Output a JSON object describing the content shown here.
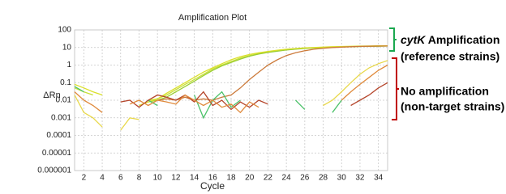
{
  "chart_data": {
    "type": "line",
    "title": "Amplification Plot",
    "x_label": "Cycle",
    "y_label": "ΔRn",
    "y_scale": "log",
    "grid": true,
    "xlim": [
      1,
      35
    ],
    "xticks": [
      2,
      4,
      6,
      8,
      10,
      12,
      14,
      16,
      18,
      20,
      22,
      24,
      26,
      28,
      30,
      32,
      34
    ],
    "ylim": [
      1e-06,
      100
    ],
    "yticks": [
      100,
      10,
      1,
      0.1,
      0.01,
      0.001,
      0.0001,
      1e-05,
      1e-06
    ],
    "x": [
      1,
      2,
      3,
      4,
      5,
      6,
      7,
      8,
      9,
      10,
      11,
      12,
      13,
      14,
      15,
      16,
      17,
      18,
      19,
      20,
      21,
      22,
      23,
      24,
      25,
      26,
      27,
      28,
      29,
      30,
      31,
      32,
      33,
      34,
      35
    ],
    "series": [
      {
        "color": "#c8e03a",
        "values": [
          0.05,
          0.03,
          0.02,
          null,
          null,
          null,
          null,
          null,
          0.01,
          0.012,
          0.02,
          0.04,
          0.08,
          0.15,
          0.3,
          0.6,
          1,
          1.6,
          2.5,
          3.5,
          4.5,
          5.5,
          6.5,
          7.5,
          8.3,
          9,
          9.6,
          10,
          10.5,
          11,
          11.3,
          11.6,
          11.8,
          12,
          12.2
        ]
      },
      {
        "color": "#9acd32",
        "values": [
          null,
          null,
          null,
          null,
          null,
          null,
          null,
          null,
          0.008,
          0.01,
          0.015,
          0.03,
          0.06,
          0.12,
          0.25,
          0.5,
          0.9,
          1.4,
          2.2,
          3.2,
          4.2,
          5.2,
          6.2,
          7.2,
          8,
          8.8,
          9.4,
          10,
          10.4,
          10.8,
          11.1,
          11.4,
          11.6,
          11.8,
          12
        ]
      },
      {
        "color": "#dbe02a",
        "values": [
          0.08,
          0.05,
          0.03,
          0.02,
          null,
          null,
          null,
          0.005,
          0.008,
          0.012,
          0.025,
          0.05,
          0.1,
          0.2,
          0.4,
          0.7,
          1.2,
          2,
          3,
          4,
          5,
          6,
          7,
          8,
          8.8,
          9.5,
          10,
          10.5,
          11,
          11.4,
          11.7,
          12,
          12.2,
          12.4,
          12.5
        ]
      },
      {
        "color": "#cc7a3a",
        "values": [
          null,
          null,
          null,
          null,
          null,
          null,
          null,
          null,
          null,
          0.01,
          0.012,
          0.01,
          0.015,
          0.01,
          0.012,
          0.01,
          0.015,
          0.02,
          0.05,
          0.15,
          0.4,
          1,
          2,
          3.5,
          5,
          6.5,
          8,
          9,
          10,
          10.5,
          11,
          11.5,
          11.8,
          12,
          12.2
        ]
      },
      {
        "color": "#4cc26a",
        "values": [
          0.06,
          0.03,
          null,
          0.02,
          null,
          null,
          null,
          null,
          0.01,
          0.005,
          null,
          null,
          null,
          0.02,
          0.001,
          0.01,
          0.03,
          0.004,
          0.01,
          null,
          null,
          null,
          null,
          null,
          0.01,
          0.003,
          null,
          null,
          0.002,
          0.01,
          null,
          null,
          null,
          null,
          null
        ]
      },
      {
        "color": "#b5462c",
        "values": [
          null,
          null,
          null,
          null,
          null,
          0.008,
          0.01,
          0.004,
          0.01,
          0.02,
          0.015,
          0.01,
          0.02,
          0.008,
          0.03,
          0.005,
          0.01,
          0.003,
          0.008,
          0.004,
          0.01,
          0.006,
          null,
          null,
          null,
          null,
          null,
          null,
          null,
          null,
          0.005,
          0.01,
          0.02,
          0.05,
          0.1
        ]
      },
      {
        "color": "#e08a3c",
        "values": [
          0.03,
          0.01,
          0.005,
          0.002,
          null,
          null,
          0.006,
          0.01,
          0.005,
          0.01,
          0.008,
          0.006,
          0.02,
          0.01,
          0.005,
          0.01,
          0.004,
          0.006,
          0.002,
          0.008,
          0.004,
          null,
          null,
          null,
          null,
          null,
          null,
          null,
          null,
          0.01,
          0.03,
          0.08,
          0.2,
          0.5,
          1
        ]
      },
      {
        "color": "#e8d84a",
        "values": [
          0.02,
          0.002,
          0.001,
          0.0003,
          null,
          0.0002,
          0.001,
          0.0008,
          null,
          null,
          null,
          null,
          null,
          null,
          null,
          null,
          null,
          null,
          null,
          null,
          null,
          null,
          null,
          null,
          null,
          null,
          null,
          0.005,
          0.01,
          0.03,
          0.1,
          0.3,
          0.7,
          1.2,
          1.8
        ]
      }
    ]
  },
  "annotations": [
    {
      "label_italic": "cytK",
      "label": "Amplification",
      "sublabel": "(reference strains)",
      "color": "#1aa84f"
    },
    {
      "label": "No amplification",
      "sublabel": "(non-target strains)",
      "color": "#c00000"
    }
  ]
}
